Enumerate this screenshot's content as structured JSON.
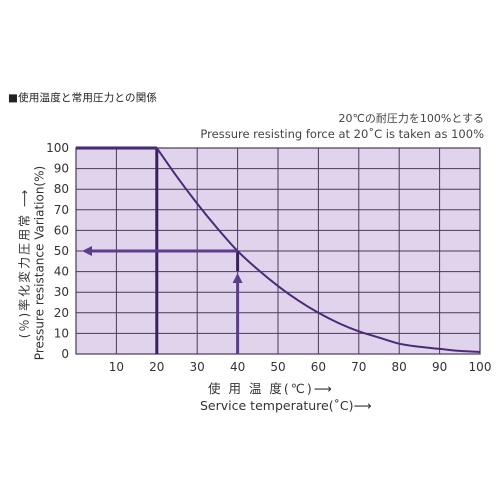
{
  "heading": "■使用温度と常用圧力との関係",
  "note_ja": "20℃の耐圧力を100%とする",
  "note_en": "Pressure resisting force at 20˚C is taken as 100%",
  "colors": {
    "plot_background": "#e0d4ec",
    "grid": "#4a3a5c",
    "curve": "#4b2a78",
    "arrows": "#5c3c8c",
    "reference_lines": "#3b2060"
  },
  "chart_data": {
    "type": "line",
    "title": "",
    "xlabel_ja": "使 用 温 度(℃)⟶",
    "xlabel_en": "Service temperature(˚C)⟶",
    "ylabel_ja": "(％)率化変力圧用常 ⟶",
    "ylabel_en": "Pressure resistance Variation(%)",
    "xlim": [
      0,
      100
    ],
    "ylim": [
      0,
      100
    ],
    "x_ticks": [
      10,
      20,
      30,
      40,
      50,
      60,
      70,
      80,
      90,
      100
    ],
    "y_ticks": [
      0,
      10,
      20,
      30,
      40,
      50,
      60,
      70,
      80,
      90,
      100
    ],
    "grid": true,
    "series": [
      {
        "x": [
          0,
          20,
          25,
          30,
          35,
          40,
          45,
          50,
          55,
          60,
          65,
          70,
          75,
          80,
          85,
          90,
          95,
          100
        ],
        "y": [
          100,
          100,
          86,
          73,
          61,
          50,
          41,
          33,
          26,
          20,
          15,
          11,
          8,
          5,
          3.5,
          2.5,
          1.5,
          1
        ]
      }
    ],
    "annotations": [
      {
        "kind": "vertical-line",
        "x": 20,
        "y_from": 0,
        "y_to": 100
      },
      {
        "kind": "arrow-up",
        "x": 40,
        "y_from": 0,
        "y_to": 50
      },
      {
        "kind": "arrow-left",
        "y": 50,
        "x_from": 40,
        "x_to": 0
      }
    ]
  }
}
